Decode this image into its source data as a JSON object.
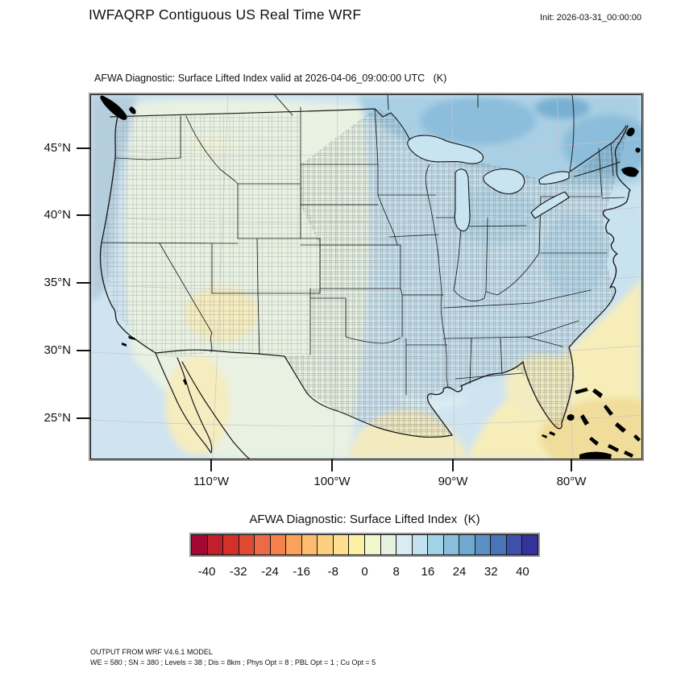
{
  "header": {
    "title": "IWFAQRP Contiguous US Real Time WRF",
    "init_label": "Init: 2026-03-31_00:00:00"
  },
  "plot": {
    "subtitle": "AFWA Diagnostic: Surface Lifted Index valid at 2026-04-06_09:00:00 UTC   (K)",
    "lat_tick_labels": [
      "45°N",
      "40°N",
      "35°N",
      "30°N",
      "25°N"
    ],
    "lon_tick_labels": [
      "110°W",
      "100°W",
      "90°W",
      "80°W"
    ]
  },
  "colorbar": {
    "title": "AFWA Diagnostic: Surface Lifted Index  (K)",
    "units": "K",
    "tick_labels": [
      "-40",
      "-32",
      "-24",
      "-16",
      "-8",
      "0",
      "8",
      "16",
      "24",
      "32",
      "40"
    ],
    "interval": 4,
    "colors": [
      "#a30734",
      "#c11f2b",
      "#d3302a",
      "#df4a33",
      "#ec6a45",
      "#f4824f",
      "#f9a25c",
      "#fbbc6f",
      "#fccf7f",
      "#fde08f",
      "#fbf0a3",
      "#f3f7cd",
      "#e6f2df",
      "#d8ecf1",
      "#c1e2ee",
      "#a2d3e5",
      "#89c0dc",
      "#70a9d0",
      "#5b90c6",
      "#4a74ba",
      "#3f51a8",
      "#32339b"
    ]
  },
  "map_palette": {
    "pacific_ocean": "#b5cede",
    "land_west_stable": "#e9f2e2",
    "land_east_stable": "#c9e2ef",
    "canada_blue": "#a9cfe4",
    "canada_deep_blue": "#8cbedb",
    "atlantic_warm": "#f6edb9",
    "atlantic_warm_deep": "#f1dd9b",
    "gulf_warm": "#f3eac0"
  },
  "footer": {
    "line1": "OUTPUT FROM WRF V4.6.1 MODEL",
    "line2": "WE = 580 ; SN = 380 ; Levels = 38 ; Dis = 8km ; Phys Opt = 8 ; PBL Opt = 1 ; Cu Opt = 5"
  }
}
